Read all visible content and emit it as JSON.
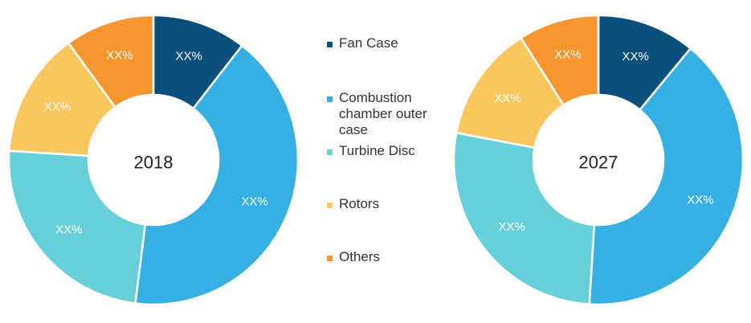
{
  "chart_data": [
    {
      "type": "pie",
      "title": "2018",
      "categories": [
        "Fan Case",
        "Combustion chamber outer case",
        "Turbine Disc",
        "Rotors",
        "Others"
      ],
      "values": [
        10.5,
        41.5,
        24.0,
        14.0,
        10.0
      ],
      "labels": [
        "XX%",
        "XX%",
        "XX%",
        "XX%",
        "XX%"
      ],
      "colors": [
        "#0b4f7c",
        "#36b0e3",
        "#66cfd9",
        "#fcc65e",
        "#f7962d"
      ]
    },
    {
      "type": "pie",
      "title": "2027",
      "categories": [
        "Fan Case",
        "Combustion chamber outer case",
        "Turbine Disc",
        "Rotors",
        "Others"
      ],
      "values": [
        11.0,
        40.0,
        27.0,
        13.0,
        9.0
      ],
      "labels": [
        "XX%",
        "XX%",
        "XX%",
        "XX%",
        "XX%"
      ],
      "colors": [
        "#0b4f7c",
        "#36b0e3",
        "#66cfd9",
        "#fcc65e",
        "#f7962d"
      ]
    }
  ],
  "legend": {
    "items": [
      {
        "label": "Fan Case",
        "color": "#0b4f7c"
      },
      {
        "label": "Combustion chamber outer case",
        "color": "#36b0e3"
      },
      {
        "label": "Turbine Disc",
        "color": "#66cfd9"
      },
      {
        "label": "Rotors",
        "color": "#fcc65e"
      },
      {
        "label": "Others",
        "color": "#f7962d"
      }
    ]
  }
}
